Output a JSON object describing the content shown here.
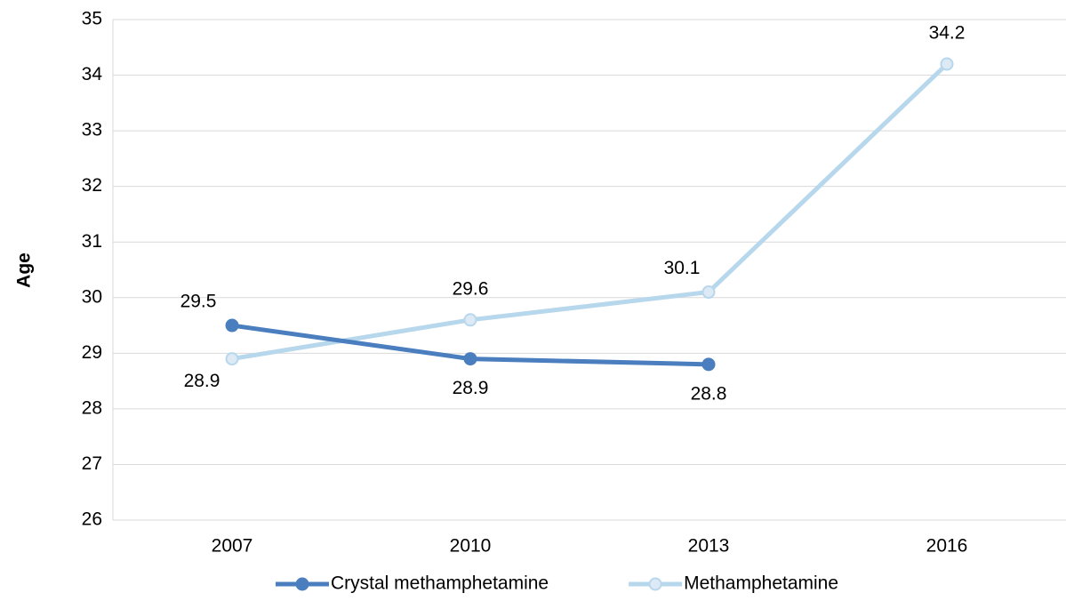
{
  "chart_data": {
    "type": "line",
    "y_label": "Age",
    "categories": [
      "2007",
      "2010",
      "2013",
      "2016"
    ],
    "series": [
      {
        "name": "Crystal methamphetamine",
        "color": "#4a7ebf",
        "marker_fill": "#4a7ebf",
        "values": [
          29.5,
          28.9,
          28.8,
          null
        ]
      },
      {
        "name": "Methamphetamine",
        "color": "#b7d7ec",
        "marker_fill": "#dde9f5",
        "values": [
          28.9,
          29.6,
          30.1,
          34.2
        ]
      }
    ],
    "ylim": [
      26,
      35
    ],
    "yticks": [
      26,
      27,
      28,
      29,
      30,
      31,
      32,
      33,
      34,
      35
    ],
    "grid": true,
    "legend": "bottom"
  }
}
